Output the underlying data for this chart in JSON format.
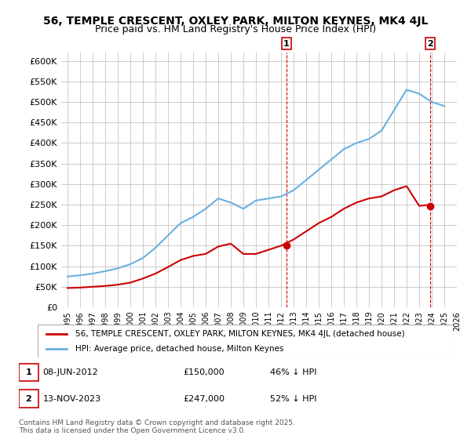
{
  "title": "56, TEMPLE CRESCENT, OXLEY PARK, MILTON KEYNES, MK4 4JL",
  "subtitle": "Price paid vs. HM Land Registry's House Price Index (HPI)",
  "hpi_years": [
    1995,
    1996,
    1997,
    1998,
    1999,
    2000,
    2001,
    2002,
    2003,
    2004,
    2005,
    2006,
    2007,
    2008,
    2009,
    2010,
    2011,
    2012,
    2013,
    2014,
    2015,
    2016,
    2017,
    2018,
    2019,
    2020,
    2021,
    2022,
    2023,
    2024,
    2025
  ],
  "hpi_values": [
    75000,
    78000,
    82000,
    88000,
    95000,
    105000,
    120000,
    145000,
    175000,
    205000,
    220000,
    240000,
    265000,
    255000,
    240000,
    260000,
    265000,
    270000,
    285000,
    310000,
    335000,
    360000,
    385000,
    400000,
    410000,
    430000,
    480000,
    530000,
    520000,
    500000,
    490000
  ],
  "price_years": [
    1995,
    1996,
    1997,
    1998,
    1999,
    2000,
    2001,
    2002,
    2003,
    2004,
    2005,
    2006,
    2007,
    2008,
    2009,
    2010,
    2011,
    2012,
    2013,
    2014,
    2015,
    2016,
    2017,
    2018,
    2019,
    2020,
    2021,
    2022,
    2023,
    2024
  ],
  "price_values": [
    47000,
    48000,
    50000,
    52000,
    55000,
    60000,
    70000,
    82000,
    98000,
    115000,
    125000,
    130000,
    148000,
    155000,
    130000,
    130000,
    140000,
    150000,
    165000,
    185000,
    205000,
    220000,
    240000,
    255000,
    265000,
    270000,
    285000,
    295000,
    247000,
    250000
  ],
  "marker1_year": 2012.44,
  "marker1_price": 150000,
  "marker2_year": 2023.87,
  "marker2_price": 247000,
  "annotation1_label": "1",
  "annotation2_label": "2",
  "hpi_color": "#6ab0e0",
  "price_color": "#cc0000",
  "marker_color": "#cc0000",
  "vline_color": "#cc0000",
  "grid_color": "#cccccc",
  "bg_color": "#ffffff",
  "ylim": [
    0,
    620000
  ],
  "yticks": [
    0,
    50000,
    100000,
    150000,
    200000,
    250000,
    300000,
    350000,
    400000,
    450000,
    500000,
    550000,
    600000
  ],
  "ytick_labels": [
    "£0",
    "£50K",
    "£100K",
    "£150K",
    "£200K",
    "£250K",
    "£300K",
    "£350K",
    "£400K",
    "£450K",
    "£500K",
    "£550K",
    "£600K"
  ],
  "legend_price_label": "56, TEMPLE CRESCENT, OXLEY PARK, MILTON KEYNES, MK4 4JL (detached house)",
  "legend_hpi_label": "HPI: Average price, detached house, Milton Keynes",
  "note1": "1    08-JUN-2012    £150,000    46% ↓ HPI",
  "note2": "2    13-NOV-2023    £247,000    52% ↓ HPI",
  "copyright": "Contains HM Land Registry data © Crown copyright and database right 2025.\nThis data is licensed under the Open Government Licence v3.0.",
  "title_fontsize": 10,
  "subtitle_fontsize": 9,
  "tick_fontsize": 8,
  "legend_fontsize": 7.5,
  "note_fontsize": 8
}
